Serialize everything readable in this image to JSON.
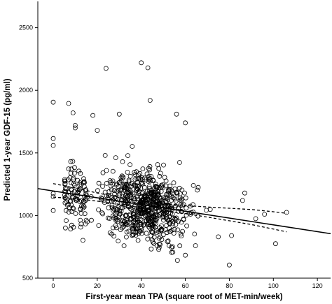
{
  "chart_data": {
    "type": "scatter",
    "title": "",
    "xlabel": "First-year mean TPA (square root of MET-min/week)",
    "ylabel": "Predicted 1-year GDF-15 (pg/ml)",
    "xlim": [
      -7,
      126
    ],
    "ylim": [
      500,
      2710
    ],
    "x_ticks": [
      0,
      20,
      40,
      60,
      80,
      100,
      120
    ],
    "y_ticks": [
      500,
      1000,
      1500,
      2000,
      2500
    ],
    "grid": false,
    "legend": "none",
    "marker": "open-circle",
    "point_color": "#000000",
    "fit_line": {
      "x": [
        -7,
        126
      ],
      "y": [
        1215,
        855
      ]
    },
    "confidence_band": {
      "x": [
        0,
        10,
        20,
        30,
        40,
        50,
        60,
        70,
        80,
        90,
        100,
        106
      ],
      "upper": [
        1255,
        1220,
        1180,
        1145,
        1115,
        1095,
        1080,
        1068,
        1058,
        1048,
        1030,
        1018
      ],
      "lower": [
        1147,
        1135,
        1115,
        1090,
        1065,
        1040,
        1015,
        988,
        958,
        928,
        892,
        870
      ]
    },
    "highlighted_points": [
      {
        "x": 0,
        "y": 1905
      },
      {
        "x": 0,
        "y": 1615
      },
      {
        "x": 0,
        "y": 1560
      },
      {
        "x": 0,
        "y": 1175
      },
      {
        "x": 0,
        "y": 1150
      },
      {
        "x": 0,
        "y": 1040
      },
      {
        "x": 7,
        "y": 1895
      },
      {
        "x": 9,
        "y": 1820
      },
      {
        "x": 10,
        "y": 1720
      },
      {
        "x": 10,
        "y": 1700
      },
      {
        "x": 18,
        "y": 1800
      },
      {
        "x": 20,
        "y": 1680
      },
      {
        "x": 24,
        "y": 2175
      },
      {
        "x": 30,
        "y": 1810
      },
      {
        "x": 40,
        "y": 2220
      },
      {
        "x": 43,
        "y": 2180
      },
      {
        "x": 44,
        "y": 1920
      },
      {
        "x": 56,
        "y": 1810
      },
      {
        "x": 60,
        "y": 1740
      },
      {
        "x": 87,
        "y": 1180
      },
      {
        "x": 86,
        "y": 1120
      },
      {
        "x": 96,
        "y": 1010
      },
      {
        "x": 101,
        "y": 775
      },
      {
        "x": 106,
        "y": 1025
      },
      {
        "x": 81,
        "y": 840
      },
      {
        "x": 80,
        "y": 605
      },
      {
        "x": 75,
        "y": 830
      },
      {
        "x": 92,
        "y": 975
      }
    ],
    "cloud": {
      "count": 780,
      "x_center": 42,
      "x_spread": 20,
      "x_min": 5,
      "x_max": 95,
      "y_center": 1070,
      "y_spread": 260,
      "y_min": 590,
      "y_max": 1780,
      "seed": 17
    }
  }
}
